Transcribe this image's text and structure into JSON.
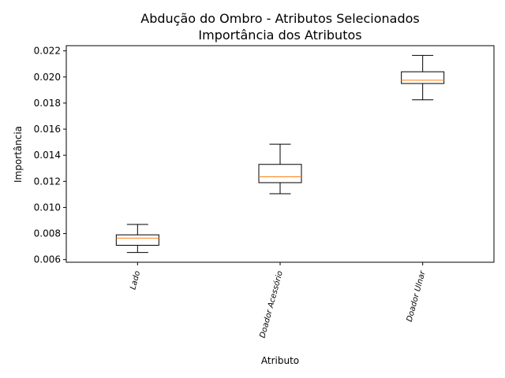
{
  "chart_data": {
    "type": "boxplot",
    "title": [
      "Abdução do Ombro - Atributos Selecionados",
      "Importância dos Atributos"
    ],
    "xlabel": "Atributo",
    "ylabel": "Importância",
    "categories": [
      "Lado",
      "Doador Acessório",
      "Doador Ulnar"
    ],
    "boxes": [
      {
        "category": "Lado",
        "whisker_low": 0.00655,
        "q1": 0.0071,
        "median": 0.00765,
        "q3": 0.0079,
        "whisker_high": 0.0087
      },
      {
        "category": "Doador Acessório",
        "whisker_low": 0.01105,
        "q1": 0.0119,
        "median": 0.01235,
        "q3": 0.0133,
        "whisker_high": 0.01485
      },
      {
        "category": "Doador Ulnar",
        "whisker_low": 0.01825,
        "q1": 0.0195,
        "median": 0.01975,
        "q3": 0.0204,
        "whisker_high": 0.02165
      }
    ],
    "ylim": [
      0.0058,
      0.0224
    ],
    "yticks": [
      "0.006",
      "0.008",
      "0.010",
      "0.012",
      "0.014",
      "0.016",
      "0.018",
      "0.020",
      "0.022"
    ],
    "xtick_rotation": "75 degrees",
    "grid": false,
    "colors": {
      "box": "#000000",
      "median": "#ff7f0e",
      "axes": "#000000"
    }
  }
}
